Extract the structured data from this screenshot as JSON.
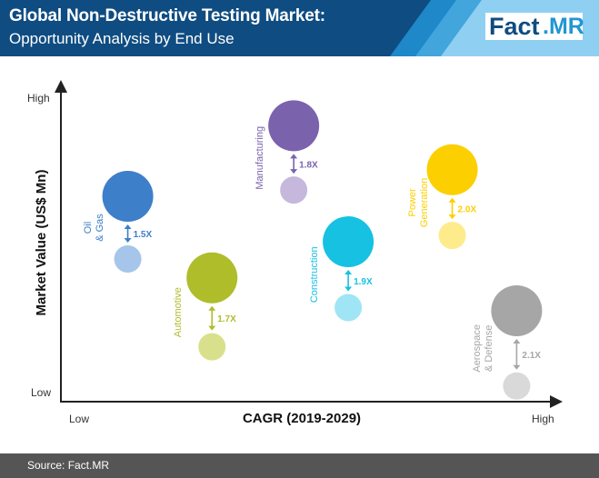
{
  "header": {
    "title": "Global Non-Destructive Testing Market:",
    "subtitle": "Opportunity Analysis by End Use",
    "brand_main": "Fact",
    "brand_accent": ".MR",
    "colors": {
      "navy": "#0f4c81",
      "stripe1": "#1e88c9",
      "stripe2": "#42a5dc",
      "stripe3": "#8fd0f2"
    }
  },
  "footer": {
    "source": "Source: Fact.MR"
  },
  "chart_data": {
    "type": "scatter",
    "xlabel": "CAGR (2019-2029)",
    "ylabel": "Market Value (US$ Mn)",
    "x_ticks": [
      "Low",
      "High"
    ],
    "y_ticks": [
      "High",
      "Low"
    ],
    "xlim": [
      0,
      1
    ],
    "ylim": [
      0,
      1
    ],
    "grid": false,
    "legend": "none",
    "series": [
      {
        "name": "Oil & Gas",
        "multiplier": "1.5X",
        "color": "#3d7fc9",
        "light_color": "#a6c5ea",
        "x": 0.135,
        "y_before": 0.455,
        "y_after": 0.655
      },
      {
        "name": "Automotive",
        "multiplier": "1.7X",
        "color": "#afbd2b",
        "light_color": "#d9e08c",
        "x": 0.305,
        "y_before": 0.175,
        "y_after": 0.395
      },
      {
        "name": "Manufacturing",
        "multiplier": "1.8X",
        "color": "#7b62ad",
        "light_color": "#c5b8dc",
        "x": 0.47,
        "y_before": 0.675,
        "y_after": 0.88
      },
      {
        "name": "Construction",
        "multiplier": "1.9X",
        "color": "#16c1e2",
        "light_color": "#9fe5f5",
        "x": 0.58,
        "y_before": 0.3,
        "y_after": 0.51
      },
      {
        "name": "Power Generation",
        "multiplier": "2.0X",
        "color": "#fccf00",
        "light_color": "#feeb8c",
        "x": 0.79,
        "y_before": 0.53,
        "y_after": 0.74
      },
      {
        "name": "Aerospace & Defense",
        "multiplier": "2.1X",
        "color": "#a6a6a6",
        "light_color": "#d9d9d9",
        "x": 0.92,
        "y_before": 0.05,
        "y_after": 0.29
      }
    ]
  }
}
